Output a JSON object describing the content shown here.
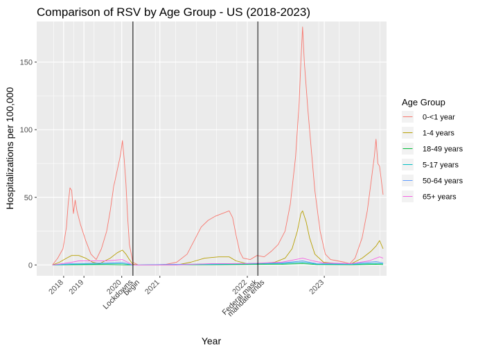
{
  "chart_data": {
    "type": "line",
    "title": "Comparison of RSV by Age Group - US (2018-2023)",
    "xlabel": "Year",
    "ylabel": "Hospitalizations per 100,000",
    "xlim": [
      0,
      1
    ],
    "ylim": [
      -8,
      180
    ],
    "y_ticks": [
      0,
      50,
      100,
      150
    ],
    "x_tick_labels": [
      {
        "label": "2018",
        "x": 0.077
      },
      {
        "label": "2019",
        "x": 0.135
      },
      {
        "label": "2020",
        "x": 0.243
      },
      {
        "label": "2021",
        "x": 0.352
      },
      {
        "label": "2022",
        "x": 0.602
      },
      {
        "label": "2023",
        "x": 0.822
      }
    ],
    "x_minor_breaks": [
      0.048,
      0.106,
      0.164,
      0.222,
      0.281,
      0.339,
      0.397,
      0.456,
      0.514,
      0.572,
      0.631,
      0.689,
      0.747,
      0.806,
      0.864,
      0.922,
      0.981
    ],
    "vlines": [
      {
        "x": 0.275,
        "label": "Lockdowns begin",
        "lines": [
          "Lockdowns",
          "begin"
        ]
      },
      {
        "x": 0.632,
        "label": "Federal mask mandate ends",
        "lines": [
          "Federal mask",
          "mandate ends"
        ]
      }
    ],
    "grid": true,
    "legend": {
      "title": "Age Group",
      "position": "right"
    },
    "series": [
      {
        "name": "0-<1 year",
        "color": "#F8766D",
        "points": [
          [
            0.045,
            0
          ],
          [
            0.06,
            5
          ],
          [
            0.075,
            12
          ],
          [
            0.085,
            28
          ],
          [
            0.09,
            45
          ],
          [
            0.095,
            57
          ],
          [
            0.1,
            55
          ],
          [
            0.105,
            38
          ],
          [
            0.11,
            48
          ],
          [
            0.115,
            40
          ],
          [
            0.125,
            30
          ],
          [
            0.14,
            18
          ],
          [
            0.155,
            8
          ],
          [
            0.17,
            4
          ],
          [
            0.185,
            12
          ],
          [
            0.2,
            25
          ],
          [
            0.21,
            40
          ],
          [
            0.22,
            58
          ],
          [
            0.23,
            70
          ],
          [
            0.24,
            82
          ],
          [
            0.245,
            92
          ],
          [
            0.25,
            78
          ],
          [
            0.255,
            60
          ],
          [
            0.26,
            35
          ],
          [
            0.265,
            15
          ],
          [
            0.275,
            2
          ],
          [
            0.29,
            0
          ],
          [
            0.33,
            0
          ],
          [
            0.37,
            0.5
          ],
          [
            0.4,
            2
          ],
          [
            0.43,
            8
          ],
          [
            0.45,
            18
          ],
          [
            0.47,
            28
          ],
          [
            0.49,
            33
          ],
          [
            0.51,
            36
          ],
          [
            0.53,
            38
          ],
          [
            0.55,
            40
          ],
          [
            0.56,
            35
          ],
          [
            0.57,
            22
          ],
          [
            0.58,
            10
          ],
          [
            0.59,
            5
          ],
          [
            0.61,
            4
          ],
          [
            0.63,
            7
          ],
          [
            0.65,
            6
          ],
          [
            0.67,
            10
          ],
          [
            0.69,
            15
          ],
          [
            0.71,
            25
          ],
          [
            0.725,
            45
          ],
          [
            0.74,
            80
          ],
          [
            0.75,
            120
          ],
          [
            0.755,
            150
          ],
          [
            0.76,
            176
          ],
          [
            0.765,
            150
          ],
          [
            0.775,
            115
          ],
          [
            0.785,
            85
          ],
          [
            0.795,
            55
          ],
          [
            0.81,
            25
          ],
          [
            0.825,
            8
          ],
          [
            0.84,
            4
          ],
          [
            0.86,
            3
          ],
          [
            0.88,
            2
          ],
          [
            0.895,
            1
          ],
          [
            0.91,
            5
          ],
          [
            0.93,
            20
          ],
          [
            0.945,
            40
          ],
          [
            0.955,
            60
          ],
          [
            0.965,
            80
          ],
          [
            0.97,
            93
          ],
          [
            0.975,
            75
          ],
          [
            0.98,
            73
          ],
          [
            0.99,
            52
          ]
        ]
      },
      {
        "name": "1-4 years",
        "color": "#B79F00",
        "points": [
          [
            0.045,
            0
          ],
          [
            0.065,
            2
          ],
          [
            0.085,
            5
          ],
          [
            0.1,
            7
          ],
          [
            0.12,
            7
          ],
          [
            0.14,
            5
          ],
          [
            0.16,
            2
          ],
          [
            0.18,
            1
          ],
          [
            0.21,
            5
          ],
          [
            0.23,
            9
          ],
          [
            0.245,
            11
          ],
          [
            0.255,
            8
          ],
          [
            0.265,
            4
          ],
          [
            0.275,
            0.5
          ],
          [
            0.29,
            0
          ],
          [
            0.4,
            0
          ],
          [
            0.44,
            2
          ],
          [
            0.48,
            5
          ],
          [
            0.52,
            6
          ],
          [
            0.55,
            6
          ],
          [
            0.57,
            3
          ],
          [
            0.6,
            1
          ],
          [
            0.64,
            1
          ],
          [
            0.68,
            2
          ],
          [
            0.71,
            5
          ],
          [
            0.73,
            12
          ],
          [
            0.745,
            25
          ],
          [
            0.755,
            38
          ],
          [
            0.76,
            40
          ],
          [
            0.77,
            32
          ],
          [
            0.78,
            20
          ],
          [
            0.795,
            8
          ],
          [
            0.82,
            2
          ],
          [
            0.86,
            1
          ],
          [
            0.9,
            1
          ],
          [
            0.93,
            5
          ],
          [
            0.955,
            10
          ],
          [
            0.97,
            14
          ],
          [
            0.98,
            18
          ],
          [
            0.99,
            12
          ]
        ]
      },
      {
        "name": "18-49 years",
        "color": "#00BA38",
        "points": [
          [
            0.045,
            0
          ],
          [
            0.1,
            0.2
          ],
          [
            0.2,
            0.3
          ],
          [
            0.275,
            0
          ],
          [
            0.5,
            0.2
          ],
          [
            0.7,
            0.5
          ],
          [
            0.76,
            1
          ],
          [
            0.8,
            0.3
          ],
          [
            0.9,
            0.2
          ],
          [
            0.97,
            0.5
          ],
          [
            0.99,
            0.3
          ]
        ]
      },
      {
        "name": "5-17 years",
        "color": "#00BFC4",
        "points": [
          [
            0.045,
            0
          ],
          [
            0.1,
            0.5
          ],
          [
            0.2,
            0.8
          ],
          [
            0.245,
            1
          ],
          [
            0.275,
            0
          ],
          [
            0.5,
            0.4
          ],
          [
            0.7,
            1
          ],
          [
            0.76,
            2
          ],
          [
            0.8,
            0.6
          ],
          [
            0.9,
            0.4
          ],
          [
            0.97,
            1.2
          ],
          [
            0.99,
            0.8
          ]
        ]
      },
      {
        "name": "50-64 years",
        "color": "#619CFF",
        "points": [
          [
            0.045,
            0
          ],
          [
            0.1,
            1
          ],
          [
            0.2,
            1.5
          ],
          [
            0.245,
            2
          ],
          [
            0.275,
            0
          ],
          [
            0.5,
            0.8
          ],
          [
            0.7,
            1.5
          ],
          [
            0.76,
            3
          ],
          [
            0.8,
            1
          ],
          [
            0.9,
            0.8
          ],
          [
            0.97,
            2.5
          ],
          [
            0.99,
            1.5
          ]
        ]
      },
      {
        "name": "65+ years",
        "color": "#F564E3",
        "points": [
          [
            0.045,
            0
          ],
          [
            0.1,
            2
          ],
          [
            0.12,
            3
          ],
          [
            0.2,
            3
          ],
          [
            0.245,
            4
          ],
          [
            0.26,
            2
          ],
          [
            0.275,
            0
          ],
          [
            0.4,
            0
          ],
          [
            0.5,
            1
          ],
          [
            0.6,
            1
          ],
          [
            0.7,
            2
          ],
          [
            0.76,
            5
          ],
          [
            0.79,
            3
          ],
          [
            0.82,
            1.5
          ],
          [
            0.9,
            1
          ],
          [
            0.95,
            3
          ],
          [
            0.98,
            6
          ],
          [
            0.99,
            5
          ]
        ]
      }
    ]
  }
}
